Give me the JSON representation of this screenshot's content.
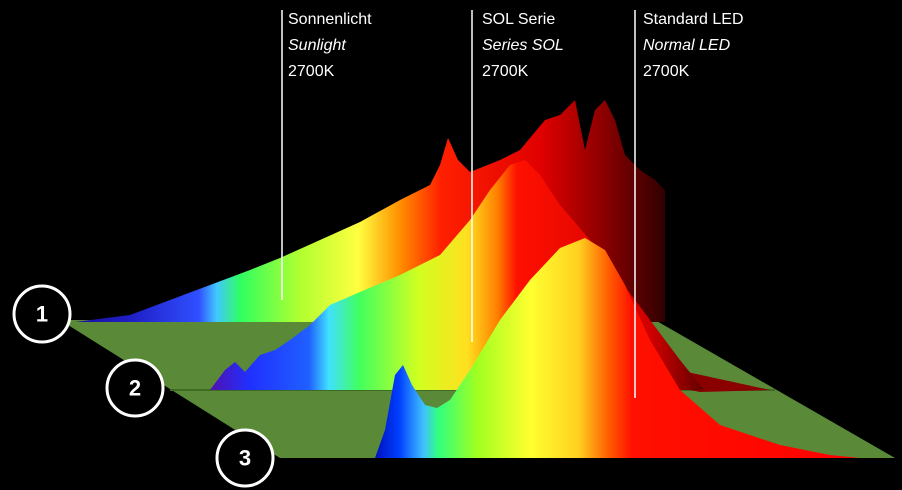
{
  "labels": [
    {
      "title": "Sonnenlicht",
      "subtitle": "Sunlight",
      "temperature": "2700K"
    },
    {
      "title": "SOL Serie",
      "subtitle": "Series SOL",
      "temperature": "2700K"
    },
    {
      "title": "Standard LED",
      "subtitle": "Normal LED",
      "temperature": "2700K"
    }
  ],
  "markers": [
    "1",
    "2",
    "3"
  ]
}
